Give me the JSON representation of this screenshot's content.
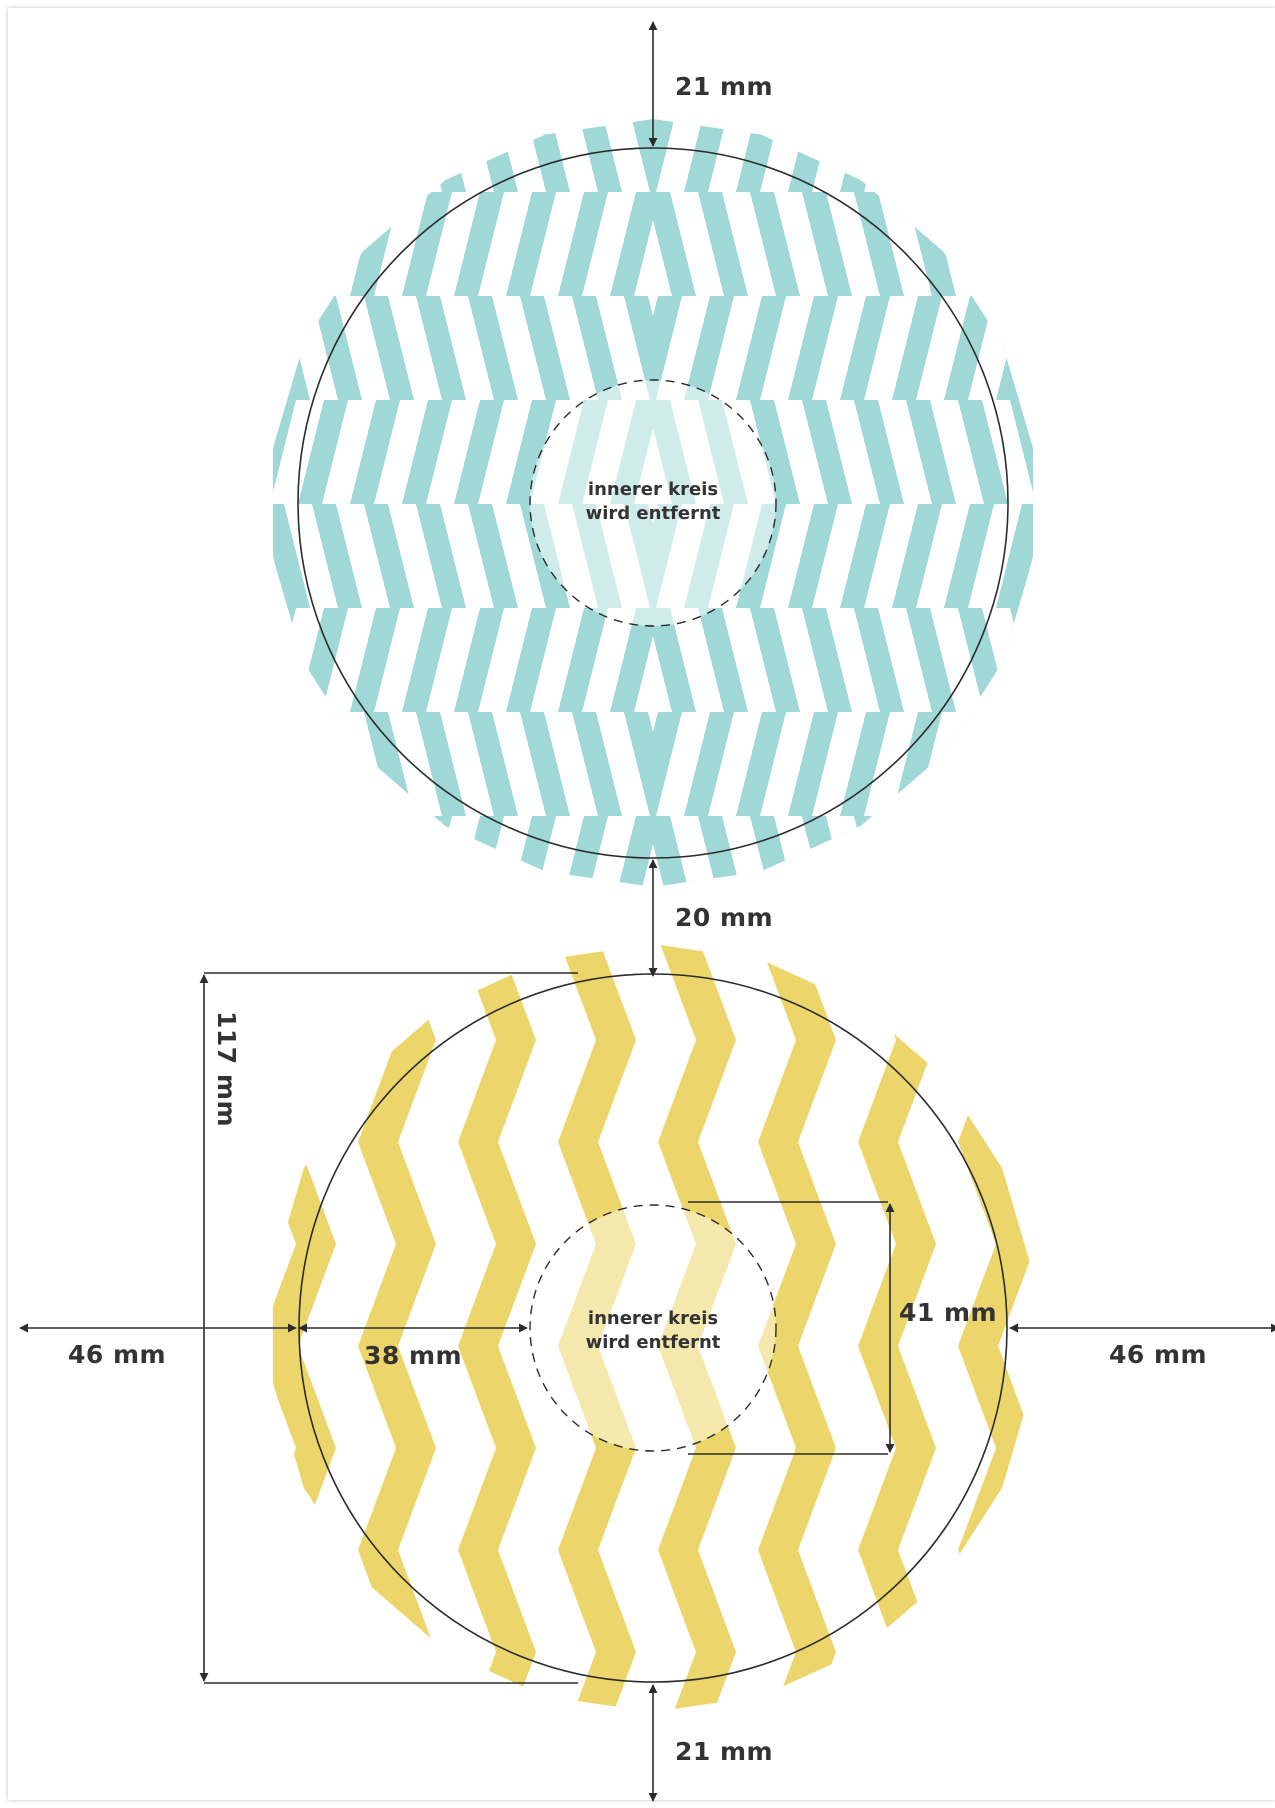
{
  "colors": {
    "teal": "#9fd8d7",
    "yellow": "#ecd56b",
    "line": "#2b2b2b",
    "text": "#333333"
  },
  "top_circle": {
    "pattern": "herringbone",
    "note_line1": "innerer kreis",
    "note_line2": "wird entfernt",
    "top_gap": "21 mm",
    "bottom_gap": "20 mm"
  },
  "bottom_circle": {
    "pattern": "chevron",
    "note_line1": "innerer kreis",
    "note_line2": "wird entfernt",
    "diameter": "117 mm",
    "left_margin": "46 mm",
    "right_margin": "46 mm",
    "radius_to_inner": "38 mm",
    "inner_diameter": "41 mm",
    "bottom_gap": "21 mm"
  }
}
